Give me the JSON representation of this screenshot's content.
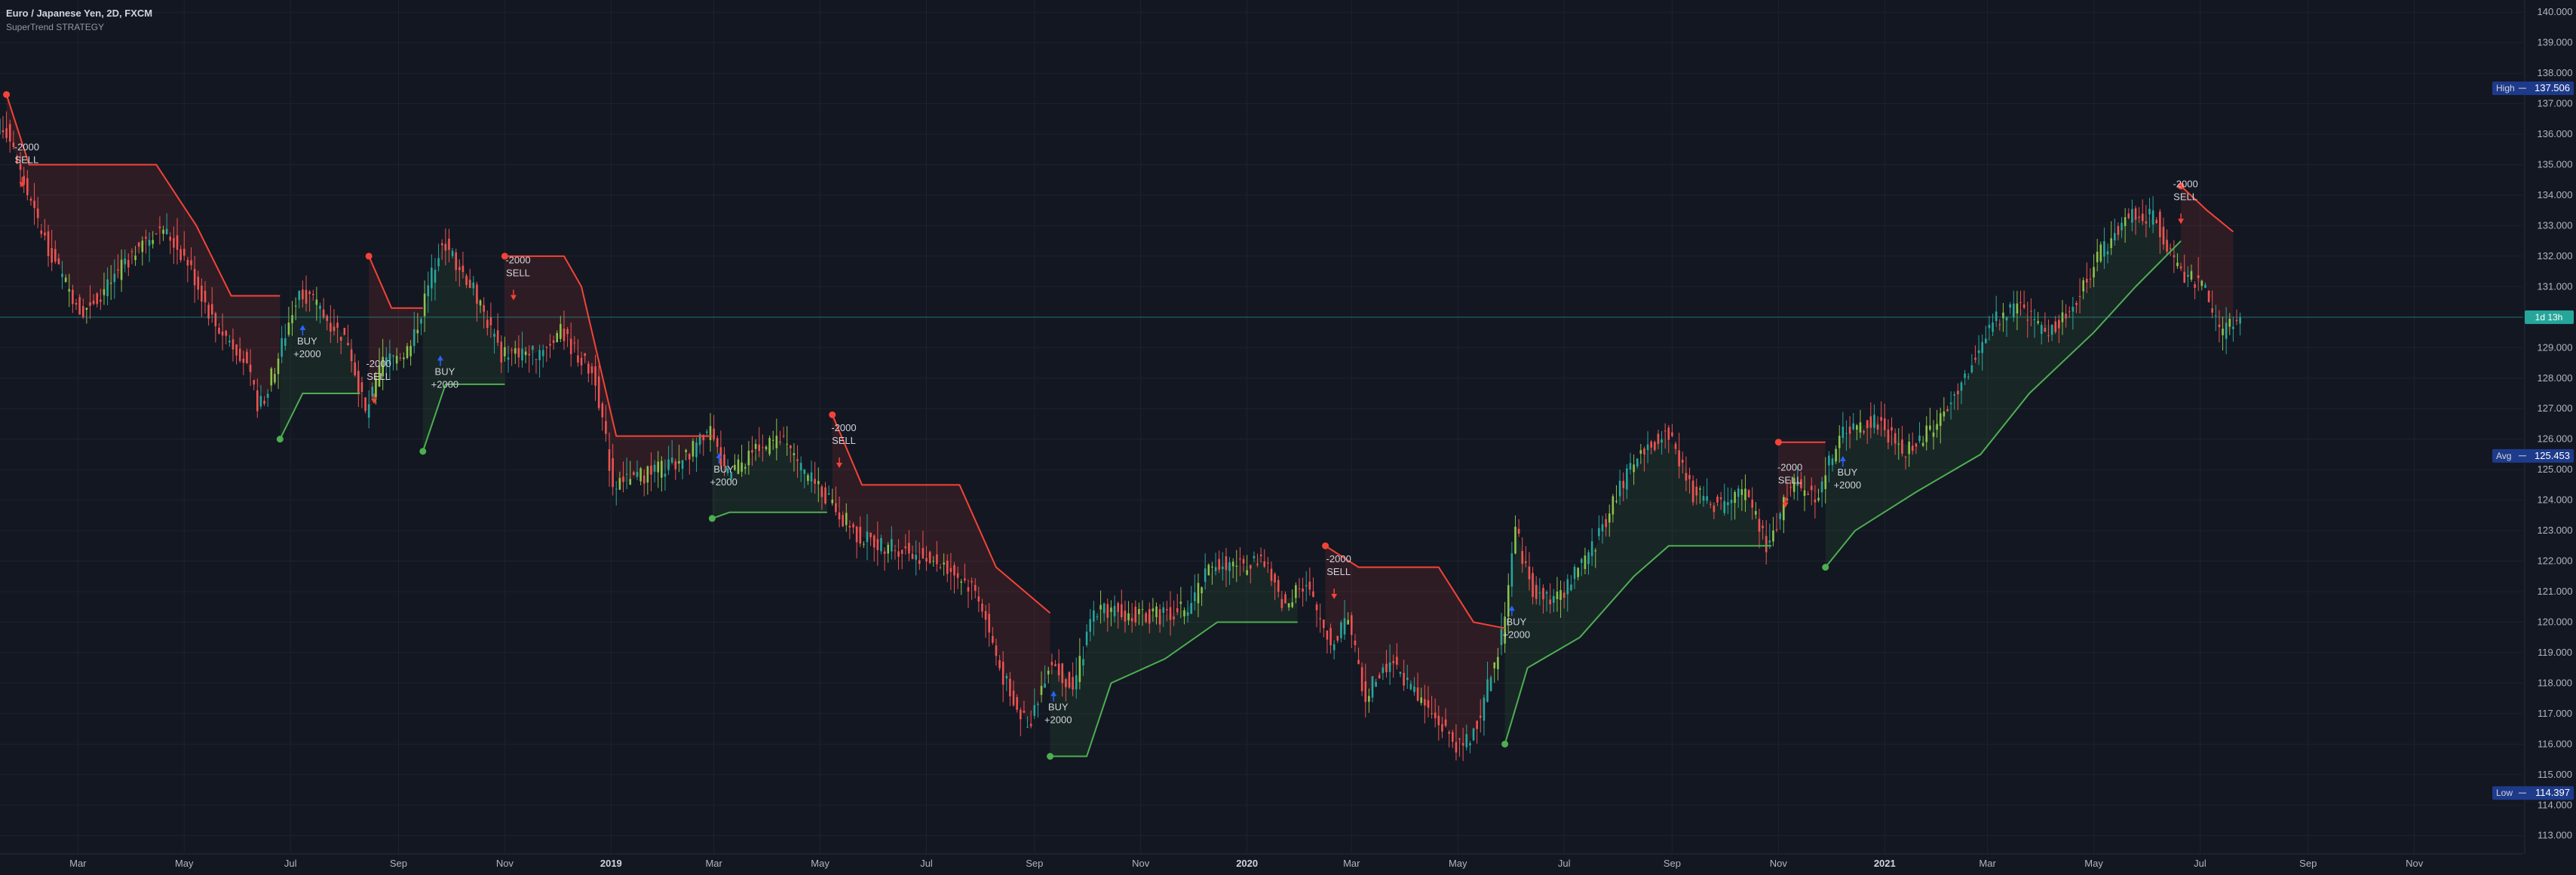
{
  "header": {
    "symbol_title": "Euro / Japanese Yen, 2D, FXCM",
    "indicator_title": "SuperTrend STRATEGY"
  },
  "colors": {
    "background": "#131722",
    "grid": "#1e222d",
    "up": "#26a69a",
    "up_alt": "#8bc34a",
    "down": "#ef5350",
    "supertrend_up": "#4caf50",
    "supertrend_down": "#f44336",
    "fill_up": "rgba(76,175,80,0.10)",
    "fill_down": "rgba(244,67,54,0.12)",
    "current_line": "#26a69a",
    "marker_text": "#d1d4dc",
    "label_high_low_bg": "#1e3a8a"
  },
  "chart_data": {
    "type": "candlestick",
    "y_axis": {
      "ylim": [
        112.4,
        140.4
      ],
      "ticks": [
        "113.000",
        "114.000",
        "115.000",
        "116.000",
        "117.000",
        "118.000",
        "119.000",
        "120.000",
        "121.000",
        "122.000",
        "123.000",
        "124.000",
        "125.000",
        "126.000",
        "127.000",
        "128.000",
        "129.000",
        "130.000",
        "131.000",
        "132.000",
        "133.000",
        "134.000",
        "135.000",
        "136.000",
        "137.000",
        "138.000",
        "139.000",
        "140.000"
      ]
    },
    "x_axis": {
      "start": "2018-01",
      "end": "2021-12",
      "labels": [
        {
          "label": "Mar",
          "date": "2018-03"
        },
        {
          "label": "May",
          "date": "2018-05"
        },
        {
          "label": "Jul",
          "date": "2018-07"
        },
        {
          "label": "Sep",
          "date": "2018-09"
        },
        {
          "label": "Nov",
          "date": "2018-11"
        },
        {
          "label": "2019",
          "date": "2019-01",
          "bold": true
        },
        {
          "label": "Mar",
          "date": "2019-03"
        },
        {
          "label": "May",
          "date": "2019-05"
        },
        {
          "label": "Jul",
          "date": "2019-07"
        },
        {
          "label": "Sep",
          "date": "2019-09"
        },
        {
          "label": "Nov",
          "date": "2019-11"
        },
        {
          "label": "2020",
          "date": "2020-01",
          "bold": true
        },
        {
          "label": "Mar",
          "date": "2020-03"
        },
        {
          "label": "May",
          "date": "2020-05"
        },
        {
          "label": "Jul",
          "date": "2020-07"
        },
        {
          "label": "Sep",
          "date": "2020-09"
        },
        {
          "label": "Nov",
          "date": "2020-11"
        },
        {
          "label": "2021",
          "date": "2021-01",
          "bold": true
        },
        {
          "label": "Mar",
          "date": "2021-03"
        },
        {
          "label": "May",
          "date": "2021-05"
        },
        {
          "label": "Jul",
          "date": "2021-07"
        },
        {
          "label": "Sep",
          "date": "2021-09"
        },
        {
          "label": "Nov",
          "date": "2021-11"
        }
      ]
    },
    "price_path": [
      [
        "2018-01-01",
        135.8
      ],
      [
        "2018-01-20",
        136.3
      ],
      [
        "2018-02-05",
        133.5
      ],
      [
        "2018-02-20",
        131.5
      ],
      [
        "2018-03-05",
        130.2
      ],
      [
        "2018-03-20",
        131.0
      ],
      [
        "2018-04-05",
        132.2
      ],
      [
        "2018-04-20",
        133.0
      ],
      [
        "2018-05-05",
        131.8
      ],
      [
        "2018-05-20",
        129.8
      ],
      [
        "2018-06-05",
        128.8
      ],
      [
        "2018-06-15",
        127.0
      ],
      [
        "2018-06-25",
        128.5
      ],
      [
        "2018-07-08",
        131.0
      ],
      [
        "2018-07-20",
        130.2
      ],
      [
        "2018-08-05",
        129.2
      ],
      [
        "2018-08-15",
        126.8
      ],
      [
        "2018-08-25",
        128.5
      ],
      [
        "2018-09-10",
        129.0
      ],
      [
        "2018-09-28",
        132.6
      ],
      [
        "2018-10-15",
        131.0
      ],
      [
        "2018-11-01",
        128.8
      ],
      [
        "2018-11-20",
        128.8
      ],
      [
        "2018-12-05",
        129.5
      ],
      [
        "2018-12-25",
        128.0
      ],
      [
        "2019-01-04",
        124.5
      ],
      [
        "2019-01-20",
        124.8
      ],
      [
        "2019-02-10",
        125.2
      ],
      [
        "2019-03-01",
        126.2
      ],
      [
        "2019-03-10",
        124.8
      ],
      [
        "2019-03-25",
        125.5
      ],
      [
        "2019-04-10",
        126.0
      ],
      [
        "2019-04-25",
        124.8
      ],
      [
        "2019-05-08",
        124.0
      ],
      [
        "2019-05-25",
        122.8
      ],
      [
        "2019-06-10",
        122.5
      ],
      [
        "2019-06-25",
        122.3
      ],
      [
        "2019-07-15",
        121.8
      ],
      [
        "2019-08-01",
        121.0
      ],
      [
        "2019-08-15",
        118.3
      ],
      [
        "2019-08-30",
        116.5
      ],
      [
        "2019-09-12",
        118.8
      ],
      [
        "2019-09-25",
        117.8
      ],
      [
        "2019-10-08",
        120.5
      ],
      [
        "2019-10-25",
        120.3
      ],
      [
        "2019-11-15",
        120.2
      ],
      [
        "2019-12-01",
        120.5
      ],
      [
        "2019-12-15",
        122.0
      ],
      [
        "2020-01-01",
        121.8
      ],
      [
        "2020-01-10",
        122.2
      ],
      [
        "2020-01-25",
        120.5
      ],
      [
        "2020-02-05",
        121.3
      ],
      [
        "2020-02-20",
        119.3
      ],
      [
        "2020-03-01",
        120.2
      ],
      [
        "2020-03-10",
        117.5
      ],
      [
        "2020-03-25",
        118.8
      ],
      [
        "2020-04-10",
        117.5
      ],
      [
        "2020-04-25",
        116.5
      ],
      [
        "2020-05-05",
        115.8
      ],
      [
        "2020-05-15",
        116.8
      ],
      [
        "2020-05-28",
        119.5
      ],
      [
        "2020-06-05",
        123.0
      ],
      [
        "2020-06-15",
        121.0
      ],
      [
        "2020-07-01",
        120.8
      ],
      [
        "2020-07-20",
        122.5
      ],
      [
        "2020-08-05",
        124.5
      ],
      [
        "2020-08-20",
        125.8
      ],
      [
        "2020-09-01",
        126.2
      ],
      [
        "2020-09-15",
        124.2
      ],
      [
        "2020-10-01",
        123.8
      ],
      [
        "2020-10-15",
        124.3
      ],
      [
        "2020-10-28",
        122.4
      ],
      [
        "2020-11-10",
        124.5
      ],
      [
        "2020-11-25",
        124.2
      ],
      [
        "2020-12-10",
        126.3
      ],
      [
        "2020-12-30",
        126.6
      ],
      [
        "2021-01-15",
        125.5
      ],
      [
        "2021-02-01",
        126.5
      ],
      [
        "2021-02-20",
        128.2
      ],
      [
        "2021-03-05",
        129.8
      ],
      [
        "2021-03-20",
        130.3
      ],
      [
        "2021-04-05",
        129.5
      ],
      [
        "2021-04-20",
        130.2
      ],
      [
        "2021-05-05",
        132.0
      ],
      [
        "2021-05-25",
        133.5
      ],
      [
        "2021-06-08",
        133.2
      ],
      [
        "2021-06-20",
        131.5
      ],
      [
        "2021-07-05",
        131.0
      ],
      [
        "2021-07-15",
        129.4
      ],
      [
        "2021-07-25",
        129.9
      ]
    ],
    "supertrend": [
      {
        "dir": "down",
        "pts": [
          [
            "2018-01-19",
            137.3
          ],
          [
            "2018-02-01",
            135.0
          ],
          [
            "2018-04-15",
            135.0
          ],
          [
            "2018-05-08",
            133.0
          ],
          [
            "2018-05-28",
            130.7
          ],
          [
            "2018-06-10",
            130.7
          ],
          [
            "2018-06-25",
            130.7
          ]
        ]
      },
      {
        "dir": "up",
        "pts": [
          [
            "2018-06-25",
            126.0
          ],
          [
            "2018-07-08",
            127.5
          ],
          [
            "2018-08-10",
            127.5
          ]
        ]
      },
      {
        "dir": "down",
        "pts": [
          [
            "2018-08-15",
            132.0
          ],
          [
            "2018-08-28",
            130.3
          ],
          [
            "2018-09-15",
            130.3
          ]
        ]
      },
      {
        "dir": "up",
        "pts": [
          [
            "2018-09-15",
            125.6
          ],
          [
            "2018-09-28",
            127.8
          ],
          [
            "2018-11-01",
            127.8
          ]
        ]
      },
      {
        "dir": "down",
        "pts": [
          [
            "2018-11-01",
            132.0
          ],
          [
            "2018-12-05",
            132.0
          ],
          [
            "2018-12-15",
            131.0
          ],
          [
            "2019-01-04",
            126.1
          ],
          [
            "2019-02-28",
            126.1
          ]
        ]
      },
      {
        "dir": "up",
        "pts": [
          [
            "2019-02-28",
            123.4
          ],
          [
            "2019-03-10",
            123.6
          ],
          [
            "2019-05-05",
            123.6
          ]
        ]
      },
      {
        "dir": "down",
        "pts": [
          [
            "2019-05-08",
            126.8
          ],
          [
            "2019-05-25",
            124.5
          ],
          [
            "2019-07-20",
            124.5
          ],
          [
            "2019-08-10",
            121.8
          ],
          [
            "2019-09-10",
            120.3
          ]
        ]
      },
      {
        "dir": "up",
        "pts": [
          [
            "2019-09-10",
            115.6
          ],
          [
            "2019-10-01",
            115.6
          ],
          [
            "2019-10-15",
            118.0
          ],
          [
            "2019-11-15",
            118.8
          ],
          [
            "2019-12-15",
            120.0
          ],
          [
            "2020-01-30",
            120.0
          ]
        ]
      },
      {
        "dir": "down",
        "pts": [
          [
            "2020-02-15",
            122.5
          ],
          [
            "2020-03-05",
            121.8
          ],
          [
            "2020-04-20",
            121.8
          ],
          [
            "2020-05-10",
            120.0
          ],
          [
            "2020-05-28",
            119.8
          ]
        ]
      },
      {
        "dir": "up",
        "pts": [
          [
            "2020-05-28",
            116.0
          ],
          [
            "2020-06-10",
            118.5
          ],
          [
            "2020-07-10",
            119.5
          ],
          [
            "2020-08-10",
            121.5
          ],
          [
            "2020-08-30",
            122.5
          ],
          [
            "2020-10-28",
            122.5
          ]
        ]
      },
      {
        "dir": "down",
        "pts": [
          [
            "2020-11-01",
            125.9
          ],
          [
            "2020-11-28",
            125.9
          ]
        ]
      },
      {
        "dir": "up",
        "pts": [
          [
            "2020-11-28",
            121.8
          ],
          [
            "2020-12-15",
            123.0
          ],
          [
            "2021-01-20",
            124.3
          ],
          [
            "2021-02-25",
            125.5
          ],
          [
            "2021-03-25",
            127.5
          ],
          [
            "2021-05-01",
            129.5
          ],
          [
            "2021-05-25",
            131.0
          ],
          [
            "2021-06-20",
            132.5
          ]
        ]
      },
      {
        "dir": "down",
        "pts": [
          [
            "2021-06-20",
            134.3
          ],
          [
            "2021-07-05",
            133.5
          ],
          [
            "2021-07-20",
            132.8
          ]
        ]
      }
    ],
    "signals": [
      {
        "date": "2018-01-28",
        "price": 134.5,
        "side": "sell",
        "text": [
          "-2000",
          "SELL"
        ]
      },
      {
        "date": "2018-07-08",
        "price": 129.5,
        "side": "buy",
        "text": [
          "BUY",
          "+2000"
        ]
      },
      {
        "date": "2018-08-18",
        "price": 127.4,
        "side": "sell",
        "text": [
          "-2000",
          "SELL"
        ]
      },
      {
        "date": "2018-09-25",
        "price": 128.5,
        "side": "buy",
        "text": [
          "BUY",
          "+2000"
        ]
      },
      {
        "date": "2018-11-06",
        "price": 130.8,
        "side": "sell",
        "text": [
          "-2000",
          "SELL"
        ]
      },
      {
        "date": "2019-03-04",
        "price": 125.3,
        "side": "buy",
        "text": [
          "BUY",
          "+2000"
        ]
      },
      {
        "date": "2019-05-12",
        "price": 125.3,
        "side": "sell",
        "text": [
          "-2000",
          "SELL"
        ]
      },
      {
        "date": "2019-09-12",
        "price": 117.5,
        "side": "buy",
        "text": [
          "BUY",
          "+2000"
        ]
      },
      {
        "date": "2020-02-20",
        "price": 121.0,
        "side": "sell",
        "text": [
          "-2000",
          "SELL"
        ]
      },
      {
        "date": "2020-06-01",
        "price": 120.3,
        "side": "buy",
        "text": [
          "BUY",
          "+2000"
        ]
      },
      {
        "date": "2020-11-05",
        "price": 124.0,
        "side": "sell",
        "text": [
          "-2000",
          "SELL"
        ]
      },
      {
        "date": "2020-12-08",
        "price": 125.2,
        "side": "buy",
        "text": [
          "BUY",
          "+2000"
        ]
      },
      {
        "date": "2021-06-20",
        "price": 133.3,
        "side": "sell",
        "text": [
          "-2000",
          "SELL"
        ]
      }
    ],
    "levels": {
      "high": {
        "label": "High",
        "value": 137.506,
        "text": "137.506"
      },
      "avg": {
        "label": "Avg",
        "value": 125.453,
        "text": "125.453"
      },
      "low": {
        "label": "Low",
        "value": 114.397,
        "text": "114.397"
      },
      "current": {
        "value": 130.0,
        "countdown": "1d 13h"
      }
    }
  }
}
